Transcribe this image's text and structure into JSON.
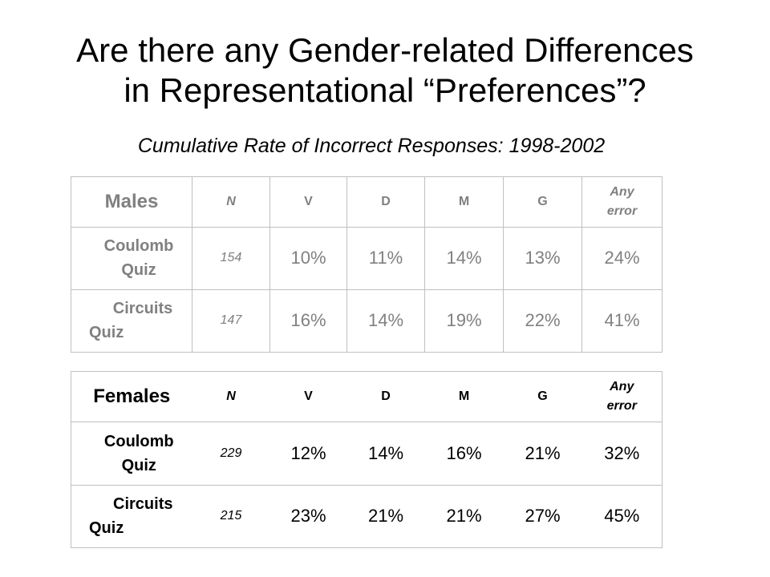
{
  "title_line1": "Are there any Gender-related Differences",
  "title_line2": "in Representational “Preferences”?",
  "subtitle": "Cumulative Rate of Incorrect Responses: 1998-2002",
  "columns": {
    "n": "N",
    "v": "V",
    "d": "D",
    "m": "M",
    "g": "G",
    "any_line1": "Any",
    "any_line2": "error"
  },
  "males": {
    "label": "Males",
    "rows": [
      {
        "label_line1": "Coulomb",
        "label_line2": "Quiz",
        "n": "154",
        "v": "10%",
        "d": "11%",
        "m": "14%",
        "g": "13%",
        "any": "24%"
      },
      {
        "label_line1": "Circuits",
        "label_line2": "Quiz",
        "n": "147",
        "v": "16%",
        "d": "14%",
        "m": "19%",
        "g": "22%",
        "any": "41%"
      }
    ]
  },
  "females": {
    "label": "Females",
    "rows": [
      {
        "label_line1": "Coulomb",
        "label_line2": "Quiz",
        "n": "229",
        "v": "12%",
        "d": "14%",
        "m": "16%",
        "g": "21%",
        "any": "32%"
      },
      {
        "label_line1": "Circuits",
        "label_line2": "Quiz",
        "n": "215",
        "v": "23%",
        "d": "21%",
        "m": "21%",
        "g": "27%",
        "any": "45%"
      }
    ]
  },
  "colors": {
    "males_text": "#808080",
    "females_text": "#000000",
    "grid": "#c0c0c0"
  }
}
